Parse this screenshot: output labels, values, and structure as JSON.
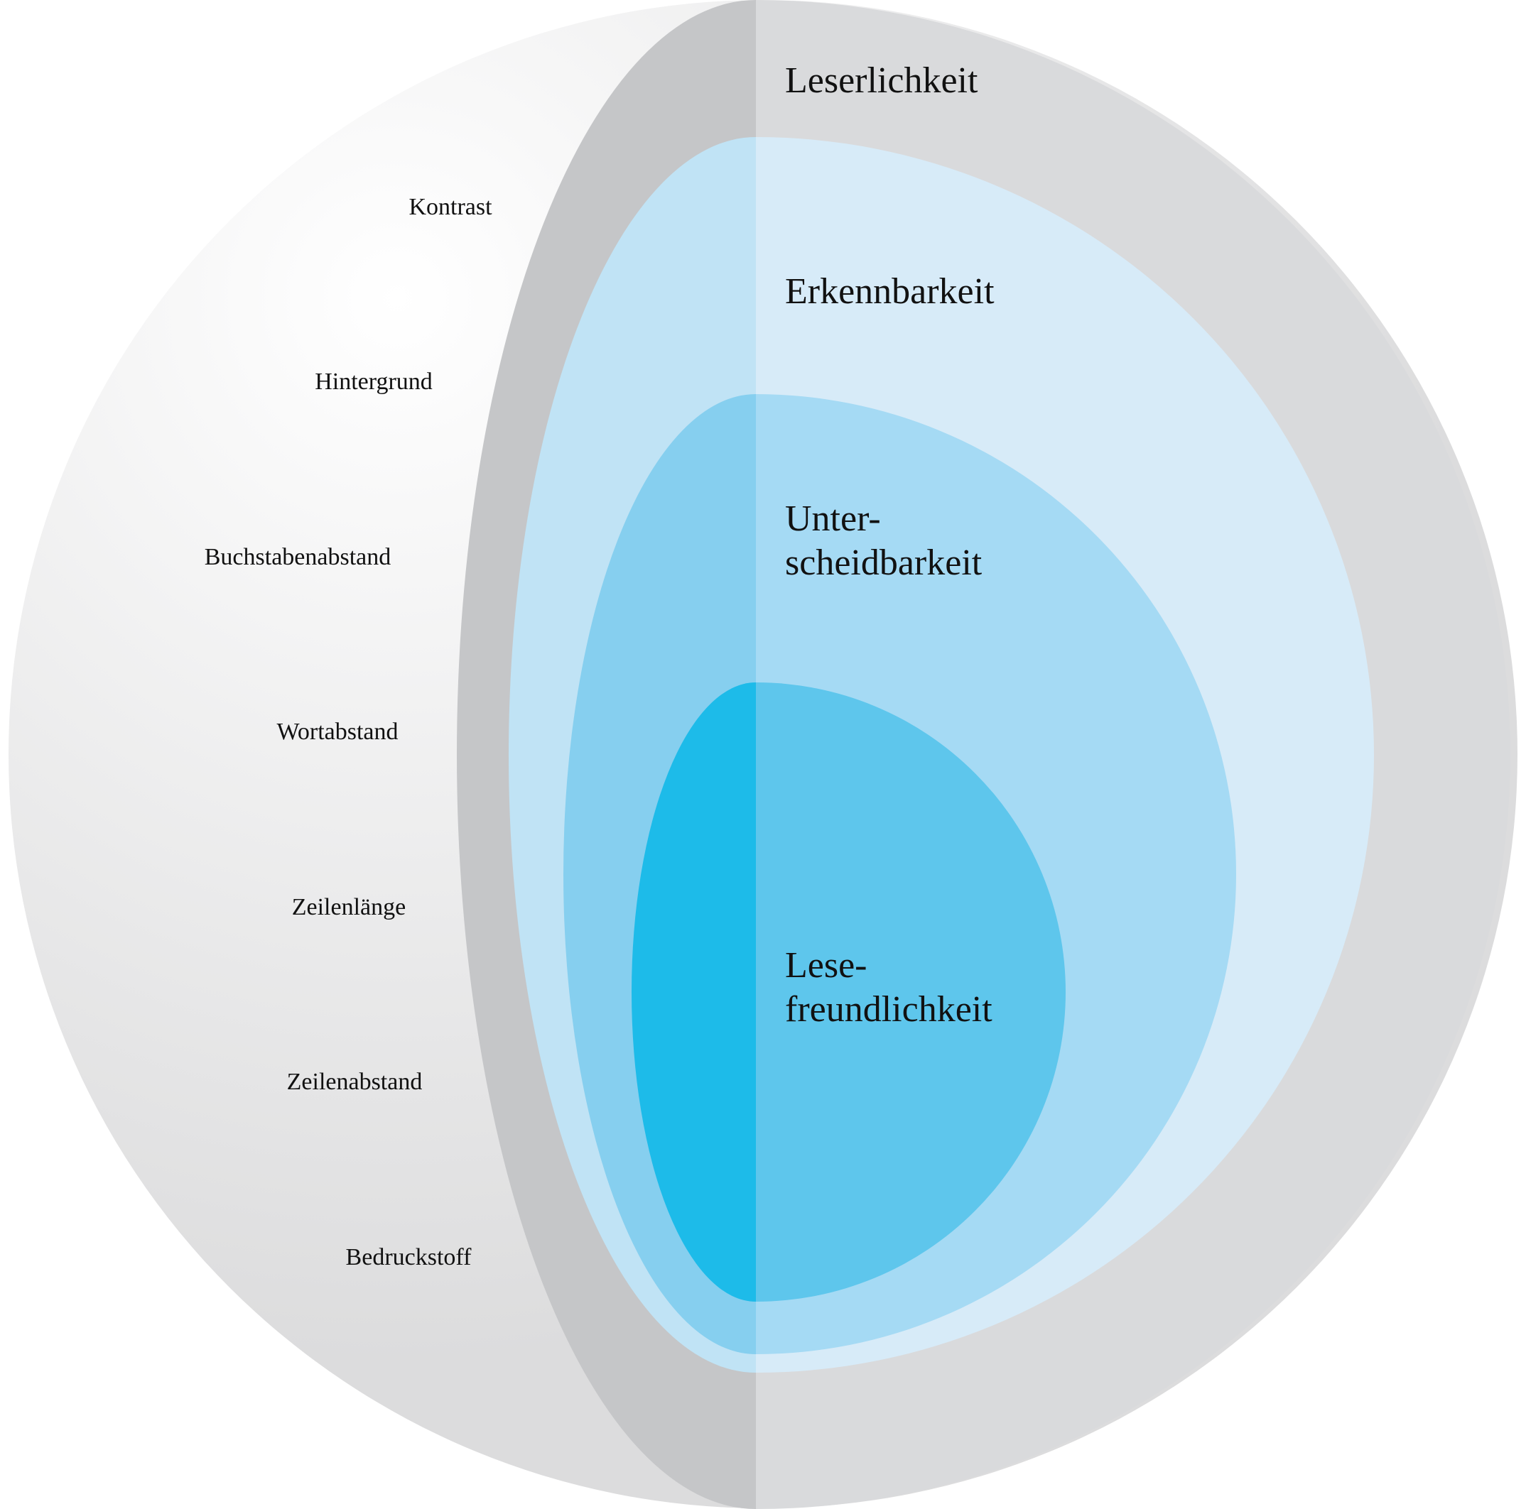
{
  "colors": {
    "sphere_light": "#ffffff",
    "sphere_dark": "#dcdcdd",
    "leserlichkeit_front": "#c5c6c8",
    "leserlichkeit_back": "#d9dadc",
    "erkennbarkeit_front": "#c0e3f5",
    "erkennbarkeit_back": "#d7ebf8",
    "unterscheidbarkeit_front": "#86cfef",
    "unterscheidbarkeit_back": "#a5daf4",
    "lesefreundlichkeit_front": "#1dbbe9",
    "lesefreundlichkeit_back": "#5ec6ec"
  },
  "factors": [
    {
      "id": "kontrast",
      "label": "Kontrast"
    },
    {
      "id": "hintergrund",
      "label": "Hintergrund"
    },
    {
      "id": "buchstabenabstand",
      "label": "Buchstabenabstand"
    },
    {
      "id": "wortabstand",
      "label": "Wortabstand"
    },
    {
      "id": "zeilenlaenge",
      "label": "Zeilenlänge"
    },
    {
      "id": "zeilenabstand",
      "label": "Zeilenabstand"
    },
    {
      "id": "bedruckstoff",
      "label": "Bedruckstoff"
    }
  ],
  "layers": {
    "leserlichkeit": {
      "line1": "Leserlichkeit"
    },
    "erkennbarkeit": {
      "line1": "Erkennbarkeit"
    },
    "unterscheidbarkeit": {
      "line1": "Unter-",
      "line2": "scheidbarkeit"
    },
    "lesefreundlichkeit": {
      "line1": "Lese-",
      "line2": "freundlichkeit"
    }
  }
}
